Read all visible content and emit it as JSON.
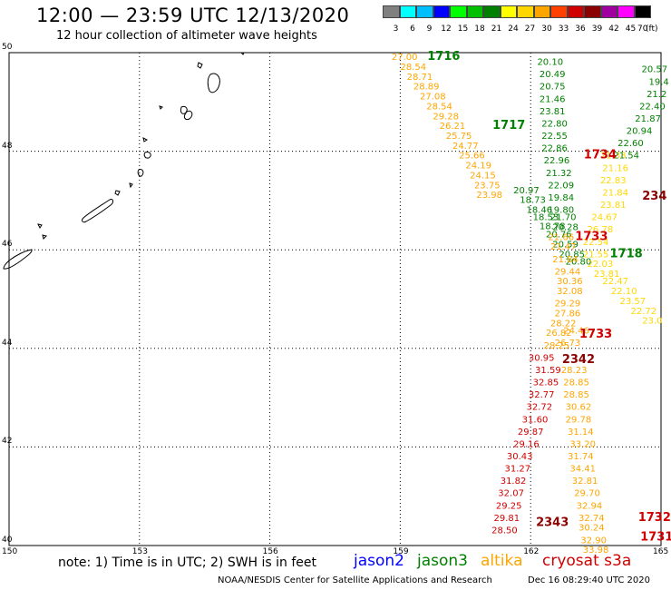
{
  "header": {
    "title": "12:00 — 23:59 UTC 12/13/2020",
    "subtitle": "12 hour collection of altimeter wave heights"
  },
  "legend": {
    "bins": [
      {
        "label": "3",
        "color": "#808080"
      },
      {
        "label": "6",
        "color": "#00ffff"
      },
      {
        "label": "9",
        "color": "#00bfff"
      },
      {
        "label": "12",
        "color": "#0000ff"
      },
      {
        "label": "15",
        "color": "#00ff00"
      },
      {
        "label": "18",
        "color": "#00c000"
      },
      {
        "label": "21",
        "color": "#008000"
      },
      {
        "label": "24",
        "color": "#ffff00"
      },
      {
        "label": "27",
        "color": "#ffd700"
      },
      {
        "label": "30",
        "color": "#ffa500"
      },
      {
        "label": "33",
        "color": "#ff4000"
      },
      {
        "label": "36",
        "color": "#d00000"
      },
      {
        "label": "39",
        "color": "#8b0000"
      },
      {
        "label": "42",
        "color": "#a000a0"
      },
      {
        "label": "45",
        "color": "#ff00ff"
      },
      {
        "label": "70",
        "color": "#000000"
      }
    ],
    "unit": "(ft)"
  },
  "axes": {
    "lon_labels": [
      "150",
      "153",
      "156",
      "159",
      "162",
      "165"
    ],
    "lat_labels": [
      "50",
      "48",
      "46",
      "44",
      "42",
      "40"
    ]
  },
  "footer": {
    "note": "note: 1) Time is in UTC; 2) SWH is in feet",
    "missions": [
      {
        "name": "jason2",
        "color": "#0000ff"
      },
      {
        "name": "jason3",
        "color": "#008000"
      },
      {
        "name": "altika",
        "color": "#ffa500"
      },
      {
        "name": "cryosat s3a",
        "color": "#d00000"
      }
    ],
    "credit": "NOAA/NESDIS Center for Satellite Applications and Research",
    "timestamp": "Dec 16 08:29:40 UTC 2020"
  },
  "colors": {
    "altika_yellow": "#ffd700",
    "altika_orange": "#ffa500",
    "jason3_green": "#008000",
    "cryosat_red": "#d00000",
    "darkred": "#8b0000"
  },
  "map": {
    "lon_range": [
      150,
      165
    ],
    "lat_range": [
      40,
      50
    ],
    "time_labels": [
      {
        "text": "1716",
        "lon": 160.0,
        "lat": 49.85,
        "color": "#008000"
      },
      {
        "text": "1717",
        "lon": 161.5,
        "lat": 48.45,
        "color": "#008000"
      },
      {
        "text": "1734",
        "lon": 163.6,
        "lat": 47.85,
        "color": "#d00000"
      },
      {
        "text": "234",
        "lon": 164.85,
        "lat": 47.02,
        "color": "#8b0000"
      },
      {
        "text": "1733",
        "lon": 163.4,
        "lat": 46.2,
        "color": "#d00000"
      },
      {
        "text": "1718",
        "lon": 164.2,
        "lat": 45.85,
        "color": "#008000"
      },
      {
        "text": "1733",
        "lon": 163.5,
        "lat": 44.22,
        "color": "#d00000"
      },
      {
        "text": "2342",
        "lon": 163.1,
        "lat": 43.7,
        "color": "#8b0000"
      },
      {
        "text": "2343",
        "lon": 162.5,
        "lat": 40.4,
        "color": "#8b0000"
      },
      {
        "text": "1732",
        "lon": 164.85,
        "lat": 40.5,
        "color": "#d00000"
      },
      {
        "text": "1731",
        "lon": 164.9,
        "lat": 40.1,
        "color": "#d00000"
      }
    ],
    "tracks": [
      {
        "name": "altika-upper-left",
        "color": "#ffa500",
        "points": [
          {
            "lon": 159.1,
            "lat": 49.85,
            "v": "27.00"
          },
          {
            "lon": 159.3,
            "lat": 49.65,
            "v": "28.54"
          },
          {
            "lon": 159.45,
            "lat": 49.45,
            "v": "28.71"
          },
          {
            "lon": 159.6,
            "lat": 49.25,
            "v": "28.89"
          },
          {
            "lon": 159.75,
            "lat": 49.05,
            "v": "27.08"
          },
          {
            "lon": 159.9,
            "lat": 48.85,
            "v": "28.54"
          },
          {
            "lon": 160.05,
            "lat": 48.65,
            "v": "29.28"
          },
          {
            "lon": 160.2,
            "lat": 48.45,
            "v": "26.21"
          },
          {
            "lon": 160.35,
            "lat": 48.25,
            "v": "25.75"
          },
          {
            "lon": 160.5,
            "lat": 48.05,
            "v": "24.77"
          },
          {
            "lon": 160.65,
            "lat": 47.85,
            "v": "25.66"
          },
          {
            "lon": 160.8,
            "lat": 47.65,
            "v": "24.19"
          },
          {
            "lon": 160.9,
            "lat": 47.45,
            "v": "24.15"
          },
          {
            "lon": 161.0,
            "lat": 47.25,
            "v": "23.75"
          },
          {
            "lon": 161.05,
            "lat": 47.05,
            "v": "23.98"
          }
        ]
      },
      {
        "name": "jason3-and-altika-center",
        "color": "#008000",
        "points": [
          {
            "lon": 162.45,
            "lat": 49.75,
            "v": "20.10"
          },
          {
            "lon": 162.5,
            "lat": 49.5,
            "v": "20.49"
          },
          {
            "lon": 162.5,
            "lat": 49.25,
            "v": "20.75"
          },
          {
            "lon": 162.5,
            "lat": 49.0,
            "v": "21.46"
          },
          {
            "lon": 162.5,
            "lat": 48.75,
            "v": "23.81"
          },
          {
            "lon": 162.55,
            "lat": 48.5,
            "v": "22.80"
          },
          {
            "lon": 162.55,
            "lat": 48.25,
            "v": "22.55"
          },
          {
            "lon": 162.55,
            "lat": 48.0,
            "v": "22.86"
          },
          {
            "lon": 162.6,
            "lat": 47.75,
            "v": "22.96"
          },
          {
            "lon": 162.65,
            "lat": 47.5,
            "v": "21.32"
          },
          {
            "lon": 162.7,
            "lat": 47.25,
            "v": "22.09"
          },
          {
            "lon": 162.7,
            "lat": 47.0,
            "v": "19.84"
          },
          {
            "lon": 162.7,
            "lat": 46.75,
            "v": "19.80"
          },
          {
            "lon": 162.75,
            "lat": 46.6,
            "v": "21.70"
          },
          {
            "lon": 162.8,
            "lat": 46.4,
            "v": "20.28"
          }
        ]
      },
      {
        "name": "jason3-diagonal",
        "color": "#008000",
        "points": [
          {
            "lon": 161.9,
            "lat": 47.15,
            "v": "20.97"
          },
          {
            "lon": 162.05,
            "lat": 46.95,
            "v": "18.73"
          },
          {
            "lon": 162.2,
            "lat": 46.75,
            "v": "18.46"
          },
          {
            "lon": 162.35,
            "lat": 46.6,
            "v": "18.53"
          },
          {
            "lon": 162.5,
            "lat": 46.42,
            "v": "18.78"
          },
          {
            "lon": 162.65,
            "lat": 46.25,
            "v": "20.76"
          },
          {
            "lon": 162.8,
            "lat": 46.05,
            "v": "20.59"
          },
          {
            "lon": 162.95,
            "lat": 45.85,
            "v": "20.85"
          },
          {
            "lon": 163.1,
            "lat": 45.7,
            "v": "20.80"
          }
        ]
      },
      {
        "name": "altika-center-lower",
        "color": "#ffa500",
        "points": [
          {
            "lon": 162.7,
            "lat": 46.2,
            "v": "21.66"
          },
          {
            "lon": 162.75,
            "lat": 46.0,
            "v": "21.47"
          },
          {
            "lon": 162.8,
            "lat": 45.75,
            "v": "21.84"
          },
          {
            "lon": 162.85,
            "lat": 45.5,
            "v": "29.44"
          },
          {
            "lon": 162.9,
            "lat": 45.3,
            "v": "30.36"
          },
          {
            "lon": 162.9,
            "lat": 45.1,
            "v": "32.08"
          },
          {
            "lon": 162.85,
            "lat": 44.85,
            "v": "29.29"
          },
          {
            "lon": 162.85,
            "lat": 44.65,
            "v": "27.86"
          },
          {
            "lon": 162.75,
            "lat": 44.45,
            "v": "28.22"
          },
          {
            "lon": 162.65,
            "lat": 44.25,
            "v": "26.82"
          },
          {
            "lon": 162.6,
            "lat": 44.0,
            "v": "28.25"
          }
        ]
      },
      {
        "name": "altika-right-column",
        "color": "#ffd700",
        "points": [
          {
            "lon": 163.9,
            "lat": 47.85,
            "v": "21.33"
          },
          {
            "lon": 163.95,
            "lat": 47.6,
            "v": "21.16"
          },
          {
            "lon": 163.9,
            "lat": 47.35,
            "v": "22.83"
          },
          {
            "lon": 163.95,
            "lat": 47.1,
            "v": "21.84"
          },
          {
            "lon": 163.9,
            "lat": 46.85,
            "v": "23.81"
          },
          {
            "lon": 163.7,
            "lat": 46.6,
            "v": "24.67"
          },
          {
            "lon": 163.6,
            "lat": 46.35,
            "v": "26.78"
          },
          {
            "lon": 163.5,
            "lat": 46.1,
            "v": "22.54"
          },
          {
            "lon": 163.5,
            "lat": 45.85,
            "v": "21.55"
          },
          {
            "lon": 163.6,
            "lat": 45.65,
            "v": "22.03"
          },
          {
            "lon": 163.75,
            "lat": 45.45,
            "v": "23.81"
          },
          {
            "lon": 163.95,
            "lat": 45.3,
            "v": "22.47"
          },
          {
            "lon": 164.15,
            "lat": 45.1,
            "v": "22.10"
          },
          {
            "lon": 164.35,
            "lat": 44.9,
            "v": "23.57"
          },
          {
            "lon": 164.6,
            "lat": 44.7,
            "v": "22.72"
          },
          {
            "lon": 164.8,
            "lat": 44.5,
            "v": "23.0"
          }
        ]
      },
      {
        "name": "jason3-far-right",
        "color": "#008000",
        "points": [
          {
            "lon": 164.85,
            "lat": 49.6,
            "v": "20.57"
          },
          {
            "lon": 164.95,
            "lat": 49.35,
            "v": "19.4"
          },
          {
            "lon": 164.9,
            "lat": 49.1,
            "v": "21.2"
          },
          {
            "lon": 164.8,
            "lat": 48.85,
            "v": "22.40"
          },
          {
            "lon": 164.7,
            "lat": 48.6,
            "v": "21.87"
          },
          {
            "lon": 164.5,
            "lat": 48.35,
            "v": "20.94"
          },
          {
            "lon": 164.3,
            "lat": 48.1,
            "v": "22.60"
          },
          {
            "lon": 164.2,
            "lat": 47.85,
            "v": "21.54"
          }
        ]
      },
      {
        "name": "cryosat-left-descending",
        "color": "#d00000",
        "points": [
          {
            "lon": 162.25,
            "lat": 43.75,
            "v": "30.95"
          },
          {
            "lon": 162.4,
            "lat": 43.5,
            "v": "31.59"
          },
          {
            "lon": 162.35,
            "lat": 43.25,
            "v": "32.85"
          },
          {
            "lon": 162.25,
            "lat": 43.0,
            "v": "32.77"
          },
          {
            "lon": 162.2,
            "lat": 42.75,
            "v": "32.72"
          },
          {
            "lon": 162.1,
            "lat": 42.5,
            "v": "31.60"
          },
          {
            "lon": 162.0,
            "lat": 42.25,
            "v": "29.87"
          },
          {
            "lon": 161.9,
            "lat": 42.0,
            "v": "29.16"
          },
          {
            "lon": 161.75,
            "lat": 41.75,
            "v": "30.43"
          },
          {
            "lon": 161.7,
            "lat": 41.5,
            "v": "31.27"
          },
          {
            "lon": 161.6,
            "lat": 41.25,
            "v": "31.82"
          },
          {
            "lon": 161.55,
            "lat": 41.0,
            "v": "32.07"
          },
          {
            "lon": 161.5,
            "lat": 40.75,
            "v": "29.25"
          },
          {
            "lon": 161.45,
            "lat": 40.5,
            "v": "29.81"
          },
          {
            "lon": 161.4,
            "lat": 40.25,
            "v": "28.50"
          }
        ]
      },
      {
        "name": "altika-lower-right-column",
        "color": "#ffa500",
        "points": [
          {
            "lon": 163.05,
            "lat": 44.3,
            "v": "24.46"
          },
          {
            "lon": 162.85,
            "lat": 44.05,
            "v": "26.73"
          },
          {
            "lon": 163.0,
            "lat": 43.5,
            "v": "28.23"
          },
          {
            "lon": 163.05,
            "lat": 43.25,
            "v": "28.85"
          },
          {
            "lon": 163.05,
            "lat": 43.0,
            "v": "28.85"
          },
          {
            "lon": 163.1,
            "lat": 42.75,
            "v": "30.62"
          },
          {
            "lon": 163.1,
            "lat": 42.5,
            "v": "29.78"
          },
          {
            "lon": 163.15,
            "lat": 42.25,
            "v": "31.14"
          },
          {
            "lon": 163.2,
            "lat": 42.0,
            "v": "33.20"
          },
          {
            "lon": 163.15,
            "lat": 41.75,
            "v": "31.74"
          },
          {
            "lon": 163.2,
            "lat": 41.5,
            "v": "34.41"
          },
          {
            "lon": 163.25,
            "lat": 41.25,
            "v": "32.81"
          },
          {
            "lon": 163.3,
            "lat": 41.0,
            "v": "29.70"
          },
          {
            "lon": 163.35,
            "lat": 40.75,
            "v": "32.94"
          },
          {
            "lon": 163.4,
            "lat": 40.5,
            "v": "32.74"
          },
          {
            "lon": 163.4,
            "lat": 40.3,
            "v": "30.24"
          },
          {
            "lon": 163.45,
            "lat": 40.05,
            "v": "32.90"
          },
          {
            "lon": 163.5,
            "lat": 39.85,
            "v": "33.98"
          }
        ]
      }
    ]
  }
}
